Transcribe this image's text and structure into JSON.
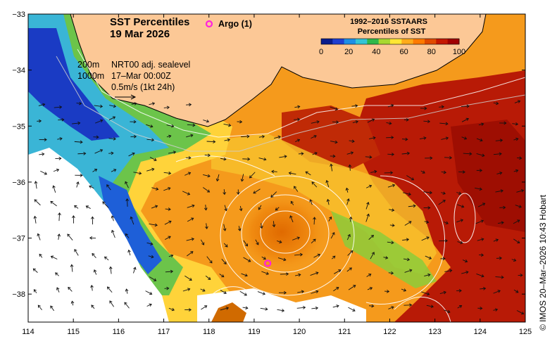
{
  "title_line1": "SST Percentiles",
  "title_line2": "19 Mar 2026",
  "argo_label": "Argo (1)",
  "info": {
    "depth_200": "200m",
    "depth_1000": "1000m",
    "product": "NRT00 adj. sealevel",
    "datetime": "17–Mar 00:00Z",
    "velocity_scale": "0.5m/s (1kt 24h)"
  },
  "colorbar": {
    "title_line1": "1992–2016 SSTAARS",
    "title_line2": "Percentiles of SST",
    "ticks": [
      "0",
      "20",
      "40",
      "60",
      "80",
      "100"
    ],
    "colors": [
      "#0a1d8c",
      "#1f3fd0",
      "#1e8ee6",
      "#33c4d6",
      "#2fb84a",
      "#a8d830",
      "#ffe633",
      "#ffab1a",
      "#ff7a00",
      "#e04a00",
      "#c41800",
      "#a00000"
    ]
  },
  "axes": {
    "x_ticks": [
      "114",
      "115",
      "116",
      "117",
      "118",
      "119",
      "120",
      "121",
      "122",
      "123",
      "124",
      "125"
    ],
    "y_ticks": [
      "−33",
      "−34",
      "−35",
      "−36",
      "−37",
      "−38"
    ]
  },
  "argo_float": {
    "lon": 119.3,
    "lat": -37.45,
    "color": "#ff22dd"
  },
  "land_color": "#fcc896",
  "copyright": "© IMOS 20–Mar–2026 10:43 Hobart"
}
